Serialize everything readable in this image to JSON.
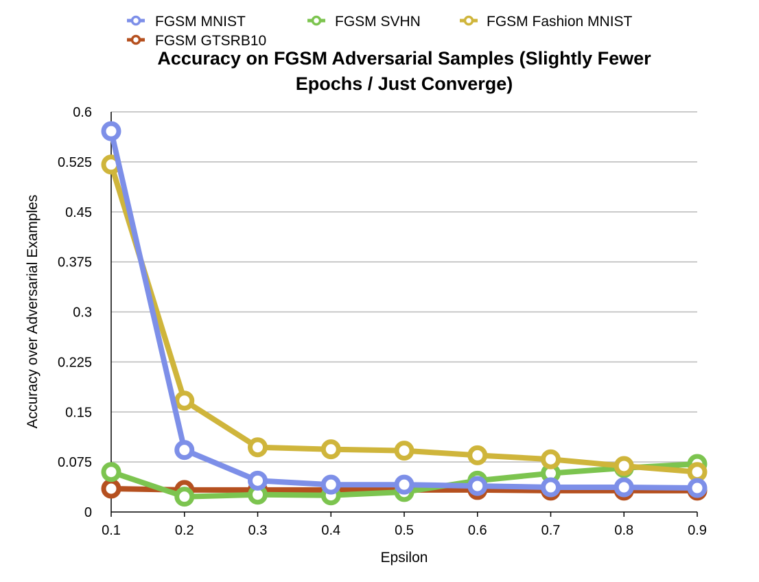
{
  "chart_data": {
    "type": "line",
    "title_lines": [
      "Accuracy on FGSM Adversarial Samples (Slightly Fewer",
      "Epochs / Just Converge)"
    ],
    "xlabel": "Epsilon",
    "ylabel": "Accuracy over Adversarial Examples",
    "x": [
      0.1,
      0.2,
      0.3,
      0.4,
      0.5,
      0.6,
      0.7,
      0.8,
      0.9
    ],
    "x_tick_labels": [
      "0.1",
      "0.2",
      "0.3",
      "0.4",
      "0.5",
      "0.6",
      "0.7",
      "0.8",
      "0.9"
    ],
    "ylim": [
      0,
      0.6
    ],
    "y_ticks": [
      0,
      0.075,
      0.15,
      0.225,
      0.3,
      0.375,
      0.45,
      0.525,
      0.6
    ],
    "y_tick_labels": [
      "0",
      "0.075",
      "0.15",
      "0.225",
      "0.3",
      "0.375",
      "0.45",
      "0.525",
      "0.6"
    ],
    "grid": true,
    "legend_position": "top",
    "series": [
      {
        "name": "FGSM MNIST",
        "color": "#7d8fe8",
        "values": [
          0.571,
          0.093,
          0.047,
          0.041,
          0.041,
          0.039,
          0.037,
          0.037,
          0.036
        ]
      },
      {
        "name": "FGSM SVHN",
        "color": "#7cc44f",
        "values": [
          0.06,
          0.023,
          0.026,
          0.025,
          0.03,
          0.047,
          0.058,
          0.066,
          0.072
        ]
      },
      {
        "name": "FGSM Fashion MNIST",
        "color": "#cfb53b",
        "values": [
          0.521,
          0.167,
          0.097,
          0.094,
          0.092,
          0.085,
          0.079,
          0.069,
          0.06
        ]
      },
      {
        "name": "FGSM GTSRB10",
        "color": "#b5501f",
        "values": [
          0.035,
          0.033,
          0.033,
          0.033,
          0.033,
          0.033,
          0.032,
          0.032,
          0.032
        ]
      }
    ],
    "draw_order": [
      3,
      1,
      2,
      0
    ]
  }
}
